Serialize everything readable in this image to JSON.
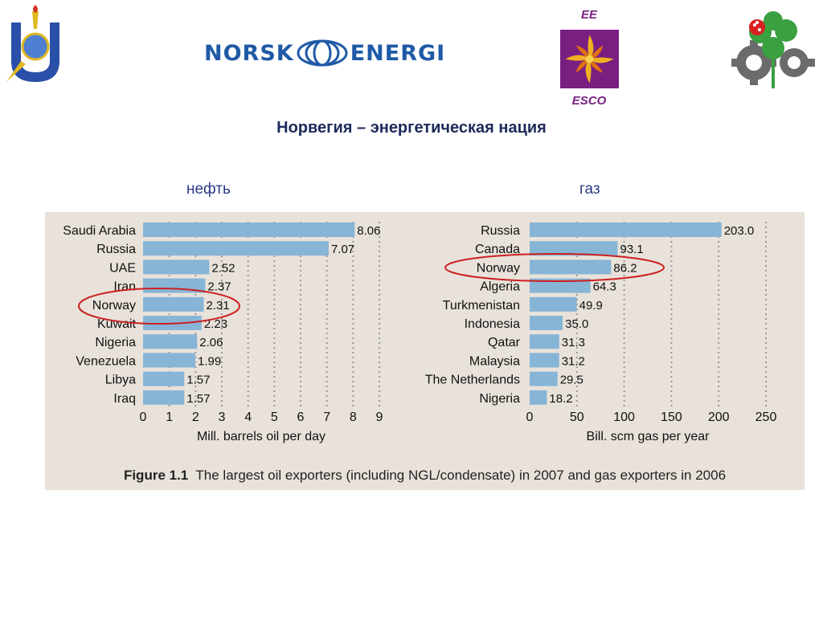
{
  "header": {
    "norsk_left": "NORSK",
    "norsk_right": "ENERGI",
    "esco_top": "EE",
    "esco_bottom": "ESCO"
  },
  "page_title": "Норвегия – энергетическая нация",
  "labels": {
    "oil": "нефть",
    "gas": "газ"
  },
  "colors": {
    "bar": "#87b5d6",
    "highlight": "#cc1f1f",
    "panel": "#e8e2da"
  },
  "figure": {
    "caption_bold": "Figure 1.1",
    "caption_text": "The largest oil exporters (including NGL/condensate) in 2007 and gas exporters in 2006"
  },
  "chart_data": [
    {
      "type": "bar",
      "orientation": "horizontal",
      "categories": [
        "Saudi Arabia",
        "Russia",
        "UAE",
        "Iran",
        "Norway",
        "Kuwait",
        "Nigeria",
        "Venezuela",
        "Libya",
        "Iraq"
      ],
      "values": [
        8.06,
        7.07,
        2.52,
        2.37,
        2.31,
        2.23,
        2.06,
        1.99,
        1.57,
        1.57
      ],
      "value_labels": [
        "8.06",
        "7.07",
        "2.52",
        "2.37",
        "2.31",
        "2.23",
        "2.06",
        "1.99",
        "1.57",
        "1.57"
      ],
      "xlabel": "Mill. barrels oil per day",
      "xlim": [
        0,
        9
      ],
      "xticks": [
        "0",
        "1",
        "2",
        "3",
        "4",
        "5",
        "6",
        "7",
        "8",
        "9"
      ],
      "grid": true,
      "highlight": "Norway"
    },
    {
      "type": "bar",
      "orientation": "horizontal",
      "categories": [
        "Russia",
        "Canada",
        "Norway",
        "Algeria",
        "Turkmenistan",
        "Indonesia",
        "Qatar",
        "Malaysia",
        "The Netherlands",
        "Nigeria"
      ],
      "values": [
        203.0,
        93.1,
        86.2,
        64.3,
        49.9,
        35.0,
        31.3,
        31.2,
        29.5,
        18.2
      ],
      "value_labels": [
        "203.0",
        "93.1",
        "86.2",
        "64.3",
        "49.9",
        "35.0",
        "31.3",
        "31.2",
        "29.5",
        "18.2"
      ],
      "xlabel": "Bill. scm gas per year",
      "xlim": [
        0,
        250
      ],
      "xticks": [
        "0",
        "50",
        "100",
        "150",
        "200",
        "250"
      ],
      "grid": true,
      "highlight": "Norway"
    }
  ]
}
